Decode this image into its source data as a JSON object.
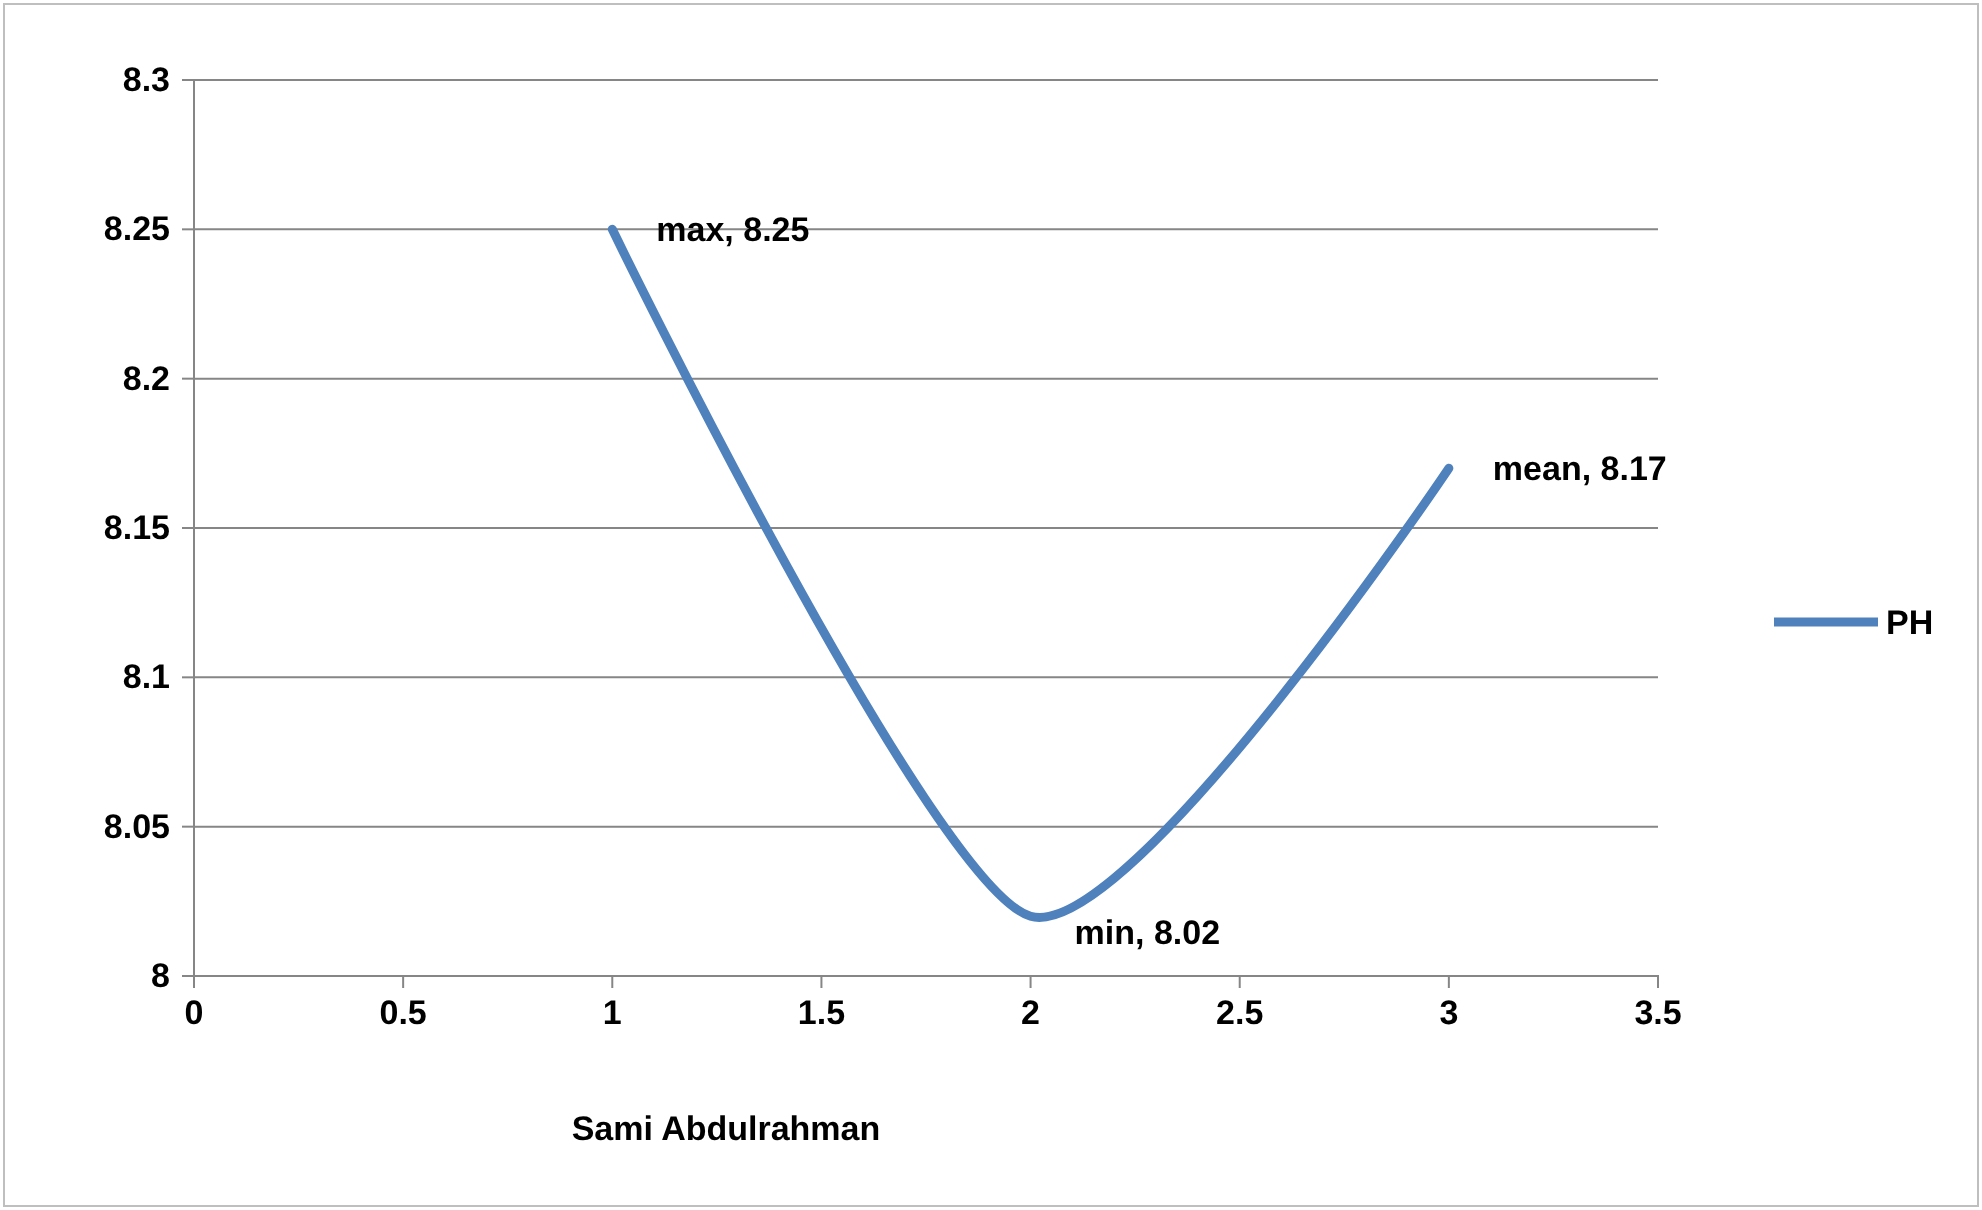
{
  "chart_data": {
    "type": "line",
    "xlabel": "Sami Abdulrahman",
    "x": [
      1,
      2,
      3
    ],
    "series": [
      {
        "name": "PH",
        "color": "#4f81bd",
        "values": [
          8.25,
          8.02,
          8.17
        ]
      }
    ],
    "xlim": [
      0,
      3.5
    ],
    "xticks": [
      0,
      0.5,
      1,
      1.5,
      2,
      2.5,
      3,
      3.5
    ],
    "ylim": [
      8,
      8.3
    ],
    "yticks": [
      8,
      8.05,
      8.1,
      8.15,
      8.2,
      8.25,
      8.3
    ],
    "grid": "y",
    "legend": "right",
    "marker": "none",
    "line_style": "solid",
    "annotations": [
      {
        "text": "max, 8.25",
        "x": 1,
        "y": 8.25
      },
      {
        "text": "min, 8.02",
        "x": 2,
        "y": 8.02
      },
      {
        "text": "mean, 8.17",
        "x": 3,
        "y": 8.17
      }
    ]
  }
}
